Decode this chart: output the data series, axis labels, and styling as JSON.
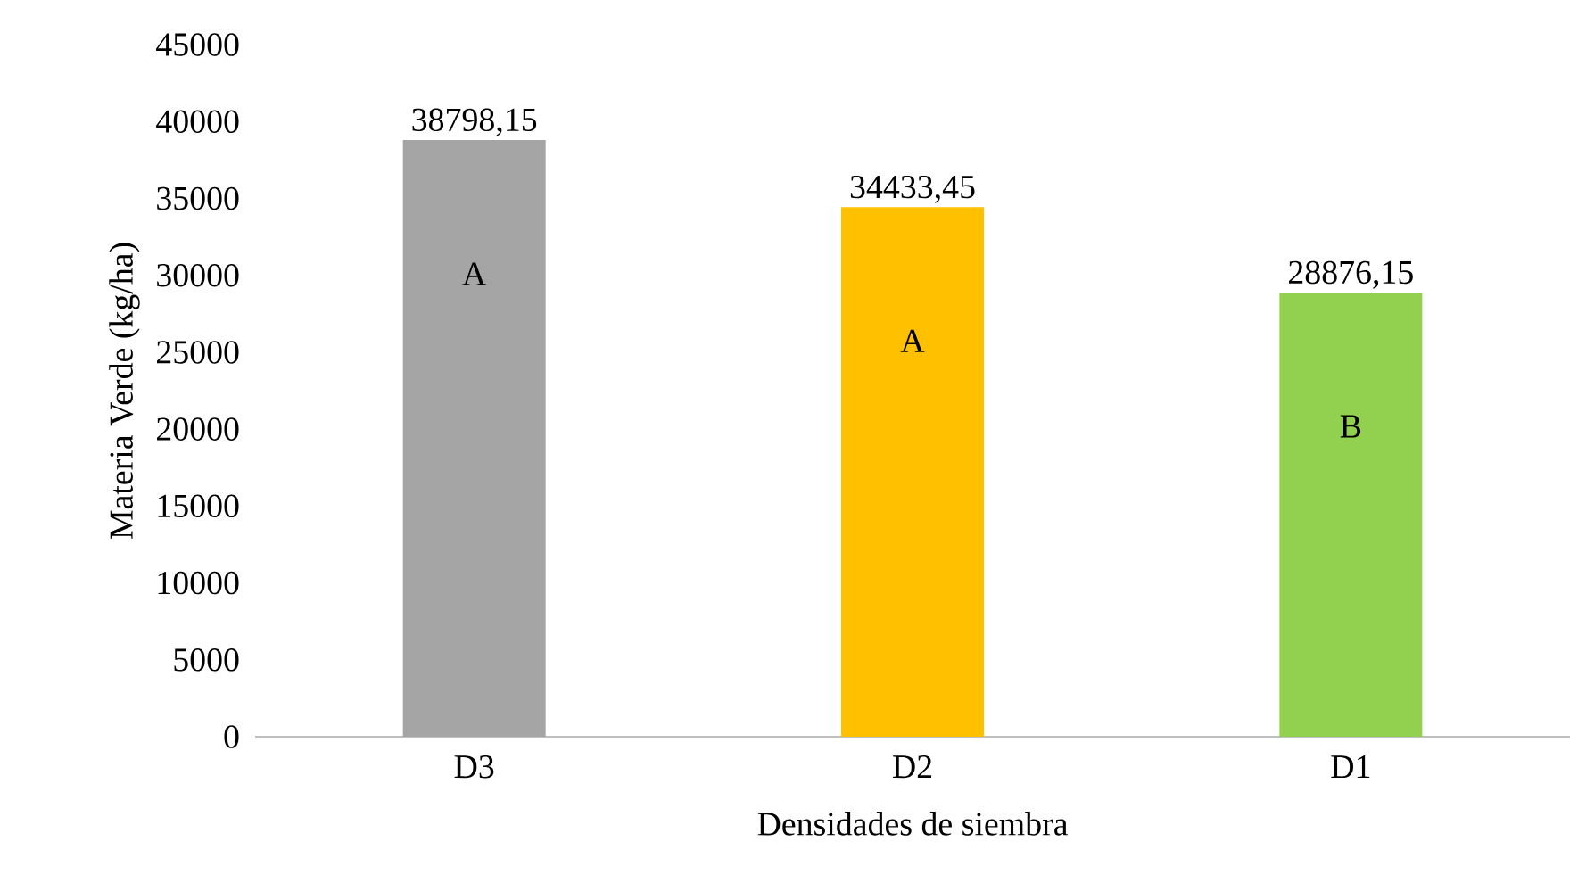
{
  "chart_data": {
    "type": "bar",
    "xlabel": "Densidades de siembra",
    "ylabel": "Materia Verde (kg/ha)",
    "categories": [
      "D3",
      "D2",
      "D1"
    ],
    "values": [
      38798.15,
      34433.45,
      28876.15
    ],
    "value_labels": [
      "38798,15",
      "34433,45",
      "28876,15"
    ],
    "colors": [
      "#a5a5a5",
      "#ffc000",
      "#92d050"
    ],
    "ylim": [
      0,
      45000
    ],
    "yticks": [
      0,
      5000,
      10000,
      15000,
      20000,
      25000,
      30000,
      35000,
      40000,
      45000
    ],
    "annotations": [
      "A",
      "A",
      "B"
    ]
  }
}
